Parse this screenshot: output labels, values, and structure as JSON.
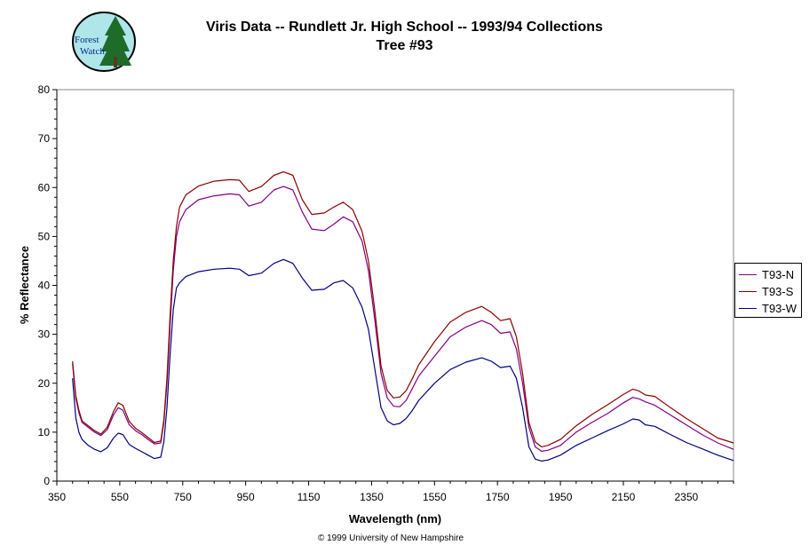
{
  "title": "Viris Data -- Rundlett Jr. High School -- 1993/94 Collections",
  "subtitle": "Tree #93",
  "logo": {
    "line1": "Forest",
    "line2": "Watch"
  },
  "copyright": "© 1999 University of New Hampshire",
  "chart_data": {
    "type": "line",
    "xlabel": "Wavelength (nm)",
    "ylabel": "% Reflectance",
    "xlim": [
      350,
      2500
    ],
    "ylim": [
      0,
      80
    ],
    "xticks": [
      350,
      550,
      750,
      950,
      1150,
      1350,
      1550,
      1750,
      1950,
      2150,
      2350
    ],
    "yticks": [
      0,
      10,
      20,
      30,
      40,
      50,
      60,
      70,
      80
    ],
    "grid": false,
    "legend_position": "right",
    "series": [
      {
        "name": "T93-N",
        "color": "#800080",
        "x": [
          400,
          410,
          420,
          430,
          450,
          470,
          490,
          510,
          530,
          545,
          560,
          580,
          600,
          620,
          640,
          660,
          680,
          690,
          700,
          710,
          720,
          730,
          740,
          760,
          800,
          850,
          900,
          930,
          960,
          1000,
          1040,
          1070,
          1100,
          1130,
          1160,
          1200,
          1230,
          1260,
          1290,
          1320,
          1340,
          1360,
          1380,
          1400,
          1420,
          1440,
          1460,
          1480,
          1500,
          1550,
          1600,
          1650,
          1700,
          1730,
          1760,
          1790,
          1810,
          1830,
          1850,
          1870,
          1890,
          1910,
          1950,
          2000,
          2050,
          2100,
          2150,
          2180,
          2200,
          2220,
          2250,
          2300,
          2350,
          2400,
          2450,
          2500
        ],
        "values": [
          24,
          17,
          14,
          12,
          11,
          10,
          9.3,
          10.5,
          13.5,
          15.0,
          14.5,
          11.5,
          10.3,
          9.5,
          8.5,
          7.6,
          7.8,
          12,
          20,
          32,
          43,
          50,
          53,
          55.5,
          57.5,
          58.3,
          58.7,
          58.5,
          56.2,
          57.0,
          59.5,
          60.2,
          59.5,
          55,
          51.5,
          51.2,
          52.5,
          54,
          53,
          49,
          43,
          33,
          22,
          17,
          15.3,
          15.2,
          16.5,
          19,
          21.5,
          25.5,
          29.5,
          31.5,
          32.8,
          32.0,
          30.2,
          30.5,
          27,
          20,
          11,
          7,
          6.1,
          6.3,
          7.3,
          10,
          12,
          13.8,
          16,
          17.1,
          16.8,
          16.2,
          15.5,
          13.5,
          11.5,
          9.5,
          7.8,
          6.5
        ]
      },
      {
        "name": "T93-S",
        "color": "#8b0000",
        "x": [
          400,
          410,
          420,
          430,
          450,
          470,
          490,
          510,
          530,
          545,
          560,
          580,
          600,
          620,
          640,
          660,
          680,
          690,
          700,
          710,
          720,
          730,
          740,
          760,
          800,
          850,
          900,
          930,
          960,
          1000,
          1040,
          1070,
          1100,
          1130,
          1160,
          1200,
          1230,
          1260,
          1290,
          1320,
          1340,
          1360,
          1380,
          1400,
          1420,
          1440,
          1460,
          1480,
          1500,
          1550,
          1600,
          1650,
          1700,
          1730,
          1760,
          1790,
          1810,
          1830,
          1850,
          1870,
          1890,
          1910,
          1950,
          2000,
          2050,
          2100,
          2150,
          2180,
          2200,
          2220,
          2250,
          2300,
          2350,
          2400,
          2450,
          2500
        ],
        "values": [
          24.5,
          17.5,
          14.5,
          12.3,
          11.3,
          10.3,
          9.6,
          11,
          14.2,
          16.0,
          15.5,
          12.2,
          10.8,
          9.9,
          8.9,
          7.9,
          8.2,
          12.5,
          21,
          34,
          45,
          52,
          56,
          58.5,
          60.3,
          61.3,
          61.6,
          61.5,
          59.2,
          60.2,
          62.5,
          63.2,
          62.5,
          57.5,
          54.5,
          54.8,
          56,
          57,
          55.5,
          51,
          45,
          35,
          23.5,
          18.5,
          17.0,
          17.2,
          18.5,
          21,
          23.8,
          28.5,
          32.5,
          34.5,
          35.7,
          34.5,
          32.8,
          33.2,
          29.5,
          22,
          12,
          8,
          7,
          7.3,
          8.5,
          11.3,
          13.6,
          15.6,
          17.7,
          18.8,
          18.4,
          17.6,
          17.3,
          15,
          12.8,
          10.8,
          8.8,
          7.8
        ]
      },
      {
        "name": "T93-W",
        "color": "#000080",
        "x": [
          400,
          410,
          420,
          430,
          450,
          470,
          490,
          510,
          530,
          545,
          560,
          580,
          600,
          620,
          640,
          660,
          680,
          690,
          700,
          710,
          720,
          730,
          740,
          760,
          800,
          850,
          900,
          930,
          960,
          1000,
          1040,
          1070,
          1100,
          1130,
          1160,
          1200,
          1230,
          1260,
          1290,
          1320,
          1340,
          1360,
          1380,
          1400,
          1420,
          1440,
          1460,
          1480,
          1500,
          1550,
          1600,
          1650,
          1700,
          1730,
          1760,
          1790,
          1810,
          1830,
          1850,
          1870,
          1890,
          1910,
          1950,
          2000,
          2050,
          2100,
          2150,
          2180,
          2200,
          2220,
          2250,
          2300,
          2350,
          2400,
          2450,
          2500
        ],
        "values": [
          21,
          13,
          10,
          8.5,
          7.3,
          6.5,
          6.0,
          6.8,
          8.8,
          9.8,
          9.5,
          7.5,
          6.7,
          6.0,
          5.3,
          4.6,
          4.9,
          8,
          15,
          26,
          35,
          39.5,
          40.5,
          41.8,
          42.8,
          43.3,
          43.5,
          43.3,
          42.0,
          42.5,
          44.5,
          45.3,
          44.5,
          41.5,
          39,
          39.2,
          40.5,
          41,
          39.5,
          35.5,
          31,
          23,
          15,
          12.3,
          11.5,
          11.8,
          12.8,
          14.5,
          16.5,
          20,
          22.8,
          24.3,
          25.2,
          24.5,
          23.2,
          23.5,
          21,
          15,
          7,
          4.5,
          4.1,
          4.3,
          5.3,
          7.3,
          8.8,
          10.3,
          11.7,
          12.7,
          12.5,
          11.5,
          11.2,
          9.5,
          7.9,
          6.6,
          5.3,
          4.2
        ]
      }
    ]
  }
}
